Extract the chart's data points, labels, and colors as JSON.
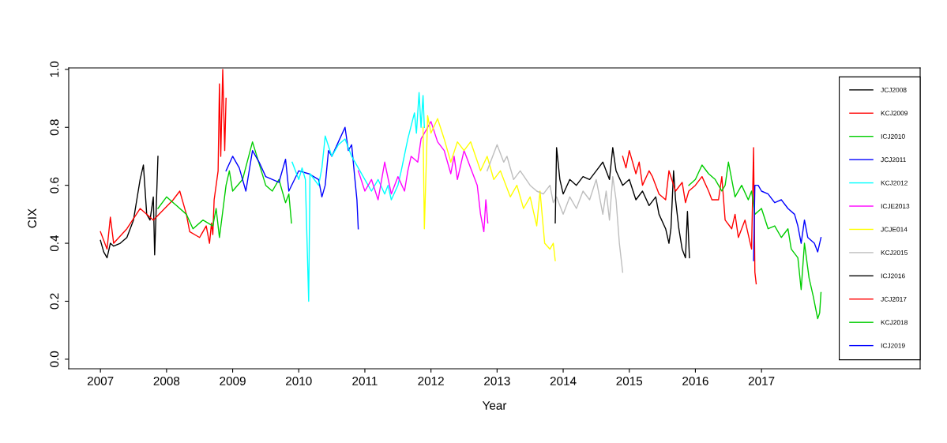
{
  "chart_data": {
    "type": "line",
    "xlabel": "Year",
    "ylabel": "CIX",
    "xlim": [
      2006.52,
      2019.4
    ],
    "ylim": [
      -0.033,
      1.005
    ],
    "xticks": [
      2007,
      2008,
      2009,
      2010,
      2011,
      2012,
      2013,
      2014,
      2015,
      2016,
      2017
    ],
    "yticks": [
      {
        "value": 0,
        "label": "0.0"
      },
      {
        "value": 0.2,
        "label": "0.2"
      },
      {
        "value": 0.4,
        "label": "0.4"
      },
      {
        "value": 0.6,
        "label": "0.6"
      },
      {
        "value": 0.8,
        "label": "0.8"
      },
      {
        "value": 1,
        "label": "1.0"
      }
    ],
    "grid": false,
    "legend": "right",
    "line_style": "solid",
    "marker": "none",
    "series": [
      {
        "name": "JCJ2008",
        "color": "#000000",
        "x": [
          2007.0,
          2007.05,
          2007.1,
          2007.15,
          2007.2,
          2007.3,
          2007.4,
          2007.5,
          2007.55,
          2007.6,
          2007.65,
          2007.7,
          2007.75,
          2007.8,
          2007.82,
          2007.87
        ],
        "values": [
          0.41,
          0.37,
          0.35,
          0.4,
          0.39,
          0.4,
          0.42,
          0.48,
          0.55,
          0.62,
          0.67,
          0.5,
          0.48,
          0.56,
          0.36,
          0.7
        ]
      },
      {
        "name": "KCJ2009",
        "color": "#ff0000",
        "x": [
          2007.0,
          2007.1,
          2007.15,
          2007.2,
          2007.4,
          2007.6,
          2007.8,
          2008.1,
          2008.2,
          2008.3,
          2008.35,
          2008.5,
          2008.6,
          2008.65,
          2008.68,
          2008.7,
          2008.72,
          2008.78,
          2008.8,
          2008.82,
          2008.85,
          2008.88,
          2008.9
        ],
        "values": [
          0.44,
          0.38,
          0.49,
          0.4,
          0.45,
          0.52,
          0.48,
          0.55,
          0.58,
          0.5,
          0.44,
          0.42,
          0.46,
          0.4,
          0.47,
          0.43,
          0.55,
          0.65,
          0.95,
          0.7,
          1.0,
          0.72,
          0.9
        ]
      },
      {
        "name": "ICJ2010",
        "color": "#00cd00",
        "x": [
          2007.87,
          2008.0,
          2008.15,
          2008.3,
          2008.4,
          2008.55,
          2008.7,
          2008.75,
          2008.8,
          2008.9,
          2008.95,
          2009.0,
          2009.15,
          2009.3,
          2009.5,
          2009.6,
          2009.7,
          2009.8,
          2009.85,
          2009.89
        ],
        "values": [
          0.52,
          0.56,
          0.53,
          0.5,
          0.45,
          0.48,
          0.46,
          0.52,
          0.42,
          0.6,
          0.65,
          0.58,
          0.62,
          0.75,
          0.6,
          0.58,
          0.62,
          0.54,
          0.57,
          0.47
        ]
      },
      {
        "name": "JCJ2011",
        "color": "#0000ff",
        "x": [
          2008.9,
          2009.0,
          2009.1,
          2009.2,
          2009.3,
          2009.4,
          2009.5,
          2009.7,
          2009.8,
          2009.85,
          2010.0,
          2010.15,
          2010.3,
          2010.35,
          2010.4,
          2010.45,
          2010.5,
          2010.6,
          2010.7,
          2010.75,
          2010.8,
          2010.85,
          2010.88,
          2010.9
        ],
        "values": [
          0.65,
          0.7,
          0.66,
          0.58,
          0.72,
          0.68,
          0.63,
          0.61,
          0.69,
          0.58,
          0.65,
          0.64,
          0.62,
          0.56,
          0.6,
          0.72,
          0.7,
          0.75,
          0.8,
          0.72,
          0.74,
          0.62,
          0.55,
          0.45
        ]
      },
      {
        "name": "KCJ2012",
        "color": "#00ffff",
        "x": [
          2009.9,
          2010.0,
          2010.05,
          2010.1,
          2010.15,
          2010.17,
          2010.3,
          2010.35,
          2010.4,
          2010.5,
          2010.6,
          2010.7,
          2010.8,
          2010.9,
          2011.0,
          2011.1,
          2011.2,
          2011.3,
          2011.35,
          2011.4,
          2011.5,
          2011.55,
          2011.65,
          2011.75,
          2011.78,
          2011.82,
          2011.85,
          2011.88,
          2011.9
        ],
        "values": [
          0.68,
          0.62,
          0.66,
          0.62,
          0.2,
          0.64,
          0.6,
          0.66,
          0.77,
          0.7,
          0.74,
          0.76,
          0.7,
          0.66,
          0.62,
          0.58,
          0.62,
          0.57,
          0.6,
          0.55,
          0.6,
          0.65,
          0.76,
          0.85,
          0.78,
          0.92,
          0.8,
          0.91,
          0.8
        ]
      },
      {
        "name": "ICJE2013",
        "color": "#ff00ff",
        "x": [
          2010.9,
          2011.0,
          2011.1,
          2011.2,
          2011.3,
          2011.4,
          2011.5,
          2011.6,
          2011.65,
          2011.7,
          2011.8,
          2011.85,
          2011.95,
          2012.0,
          2012.1,
          2012.2,
          2012.3,
          2012.35,
          2012.4,
          2012.5,
          2012.6,
          2012.7,
          2012.75,
          2012.8,
          2012.83,
          2012.86
        ],
        "values": [
          0.65,
          0.58,
          0.62,
          0.55,
          0.68,
          0.57,
          0.63,
          0.58,
          0.65,
          0.7,
          0.68,
          0.76,
          0.8,
          0.82,
          0.75,
          0.72,
          0.64,
          0.7,
          0.62,
          0.72,
          0.66,
          0.6,
          0.5,
          0.44,
          0.55,
          0.47
        ]
      },
      {
        "name": "JCJE014",
        "color": "#ffff00",
        "x": [
          2011.88,
          2011.9,
          2011.95,
          2012.0,
          2012.1,
          2012.2,
          2012.3,
          2012.4,
          2012.5,
          2012.6,
          2012.75,
          2012.85,
          2012.95,
          2013.05,
          2013.2,
          2013.3,
          2013.4,
          2013.5,
          2013.6,
          2013.65,
          2013.72,
          2013.8,
          2013.85,
          2013.88
        ],
        "values": [
          0.8,
          0.45,
          0.84,
          0.78,
          0.83,
          0.76,
          0.68,
          0.75,
          0.72,
          0.75,
          0.65,
          0.7,
          0.62,
          0.65,
          0.56,
          0.6,
          0.52,
          0.56,
          0.46,
          0.58,
          0.4,
          0.38,
          0.4,
          0.34
        ]
      },
      {
        "name": "KCJ2015",
        "color": "#bebebe",
        "x": [
          2012.85,
          2013.0,
          2013.1,
          2013.15,
          2013.25,
          2013.35,
          2013.5,
          2013.6,
          2013.7,
          2013.8,
          2013.85,
          2013.9,
          2014.0,
          2014.1,
          2014.2,
          2014.3,
          2014.4,
          2014.5,
          2014.6,
          2014.65,
          2014.7,
          2014.75,
          2014.8,
          2014.85,
          2014.9
        ],
        "values": [
          0.65,
          0.74,
          0.68,
          0.7,
          0.62,
          0.65,
          0.6,
          0.58,
          0.57,
          0.6,
          0.54,
          0.56,
          0.5,
          0.56,
          0.52,
          0.58,
          0.55,
          0.62,
          0.5,
          0.58,
          0.48,
          0.63,
          0.55,
          0.4,
          0.3
        ]
      },
      {
        "name": "ICJ2016",
        "color": "#000000",
        "x": [
          2013.88,
          2013.9,
          2013.95,
          2014.0,
          2014.1,
          2014.2,
          2014.3,
          2014.4,
          2014.5,
          2014.6,
          2014.7,
          2014.75,
          2014.8,
          2014.9,
          2015.0,
          2015.1,
          2015.2,
          2015.3,
          2015.4,
          2015.45,
          2015.55,
          2015.6,
          2015.63,
          2015.67,
          2015.7,
          2015.75,
          2015.8,
          2015.85,
          2015.88,
          2015.91
        ],
        "values": [
          0.47,
          0.73,
          0.62,
          0.57,
          0.62,
          0.6,
          0.63,
          0.62,
          0.65,
          0.68,
          0.62,
          0.73,
          0.65,
          0.6,
          0.62,
          0.55,
          0.58,
          0.53,
          0.56,
          0.5,
          0.45,
          0.4,
          0.45,
          0.65,
          0.55,
          0.45,
          0.38,
          0.35,
          0.51,
          0.35
        ]
      },
      {
        "name": "JCJ2017",
        "color": "#ff0000",
        "x": [
          2014.9,
          2014.95,
          2015.0,
          2015.1,
          2015.15,
          2015.2,
          2015.3,
          2015.35,
          2015.45,
          2015.55,
          2015.6,
          2015.7,
          2015.8,
          2015.85,
          2015.9,
          2016.0,
          2016.1,
          2016.2,
          2016.25,
          2016.35,
          2016.4,
          2016.45,
          2016.55,
          2016.6,
          2016.65,
          2016.75,
          2016.85,
          2016.88,
          2016.9,
          2016.92
        ],
        "values": [
          0.7,
          0.66,
          0.72,
          0.64,
          0.68,
          0.6,
          0.65,
          0.63,
          0.57,
          0.55,
          0.65,
          0.58,
          0.61,
          0.54,
          0.58,
          0.6,
          0.63,
          0.58,
          0.55,
          0.55,
          0.63,
          0.48,
          0.45,
          0.5,
          0.42,
          0.48,
          0.38,
          0.73,
          0.3,
          0.26
        ]
      },
      {
        "name": "KCJ2018",
        "color": "#00cd00",
        "x": [
          2015.9,
          2016.0,
          2016.1,
          2016.2,
          2016.3,
          2016.4,
          2016.45,
          2016.5,
          2016.6,
          2016.7,
          2016.8,
          2016.85,
          2016.9,
          2017.0,
          2017.1,
          2017.2,
          2017.3,
          2017.4,
          2017.45,
          2017.55,
          2017.6,
          2017.65,
          2017.72,
          2017.78,
          2017.85,
          2017.88,
          2017.9
        ],
        "values": [
          0.6,
          0.62,
          0.67,
          0.64,
          0.62,
          0.58,
          0.6,
          0.68,
          0.56,
          0.6,
          0.55,
          0.58,
          0.5,
          0.52,
          0.45,
          0.46,
          0.42,
          0.45,
          0.38,
          0.35,
          0.24,
          0.4,
          0.28,
          0.22,
          0.14,
          0.16,
          0.23
        ]
      },
      {
        "name": "ICJ2019",
        "color": "#0000ff",
        "x": [
          2016.88,
          2016.9,
          2016.95,
          2017.0,
          2017.1,
          2017.2,
          2017.3,
          2017.4,
          2017.5,
          2017.55,
          2017.6,
          2017.65,
          2017.7,
          2017.8,
          2017.85,
          2017.9
        ],
        "values": [
          0.34,
          0.6,
          0.6,
          0.58,
          0.57,
          0.54,
          0.55,
          0.52,
          0.5,
          0.46,
          0.4,
          0.48,
          0.42,
          0.4,
          0.37,
          0.42
        ]
      }
    ]
  }
}
